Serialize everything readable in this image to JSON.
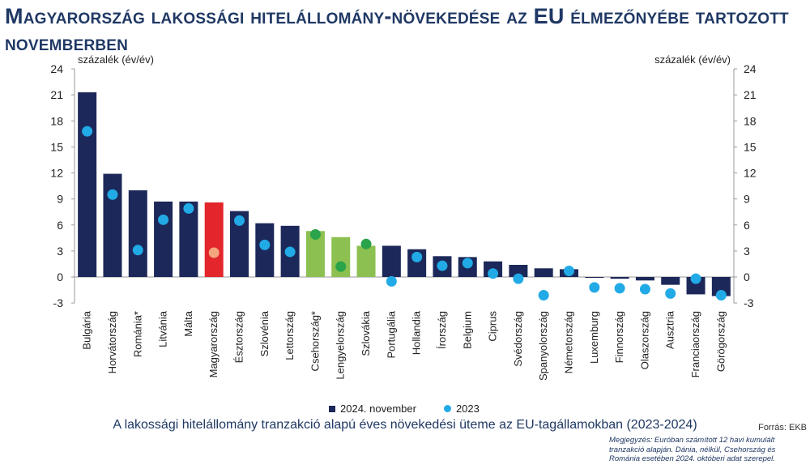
{
  "title": "Magyarország lakossági hitelállomány-növekedése az EU élmezőnyébe tartozott novemberben",
  "caption": "A lakossági hitelállomány tranzakció alapú éves növekedési üteme az EU-tagállamokban (2023-2024)",
  "source": "Forrás: EKB",
  "note": "Megjegyzés: Euróban számított 12 havi kumulált tranzakció alapján. Dánia, nélkül, Csehország és Románia esetében 2024. októberi adat szerepel.",
  "colors": {
    "navy": "#1c2859",
    "red": "#e3262b",
    "green": "#8cc051",
    "cyan": "#21aae6",
    "peach": "#f4a57d",
    "darkgreen": "#2aa34a"
  },
  "chart_data": {
    "type": "bar",
    "ylabel_left": "százalék (év/év)",
    "ylabel_right": "százalék (év/év)",
    "ylim": [
      -3,
      24
    ],
    "yticks": [
      -3,
      0,
      3,
      6,
      9,
      12,
      15,
      18,
      21,
      24
    ],
    "categories": [
      "Bulgária",
      "Horvátország",
      "Románia*",
      "Litvánia",
      "Málta",
      "Magyarország",
      "Észtország",
      "Szlovénia",
      "Lettország",
      "Csehország*",
      "Lengyelország",
      "Szlovákia",
      "Portugália",
      "Hollandia",
      "Írország",
      "Belgium",
      "Ciprus",
      "Svédország",
      "Spanyolország",
      "Németország",
      "Luxemburg",
      "Finnország",
      "Olaszország",
      "Ausztria",
      "Franciaország",
      "Görögország"
    ],
    "series": [
      {
        "name": "2024. november",
        "type": "bar",
        "values": [
          21.3,
          11.9,
          10.0,
          8.7,
          8.7,
          8.6,
          7.6,
          6.2,
          5.9,
          5.3,
          4.6,
          3.6,
          3.6,
          3.2,
          2.4,
          2.3,
          1.8,
          1.4,
          1.0,
          0.9,
          -0.1,
          -0.2,
          -0.4,
          -0.9,
          -2.0,
          -2.2
        ],
        "highlight": {
          "Magyarország": "red",
          "Csehország*": "green",
          "Lengyelország": "green",
          "Szlovákia": "green"
        }
      },
      {
        "name": "2023",
        "type": "scatter",
        "values": [
          16.8,
          9.5,
          3.1,
          6.6,
          7.9,
          2.8,
          6.5,
          3.7,
          2.9,
          4.9,
          1.2,
          3.8,
          -0.5,
          2.3,
          1.3,
          1.6,
          0.4,
          -0.2,
          -2.1,
          0.7,
          -1.2,
          -1.3,
          -1.4,
          -1.9,
          -0.2,
          -2.1
        ],
        "highlight": {
          "Magyarország": "peach",
          "Csehország*": "darkgreen",
          "Lengyelország": "darkgreen",
          "Szlovákia": "darkgreen"
        }
      }
    ],
    "legend": [
      "2024. november",
      "2023"
    ],
    "legend_position": "bottom",
    "grid": false
  }
}
